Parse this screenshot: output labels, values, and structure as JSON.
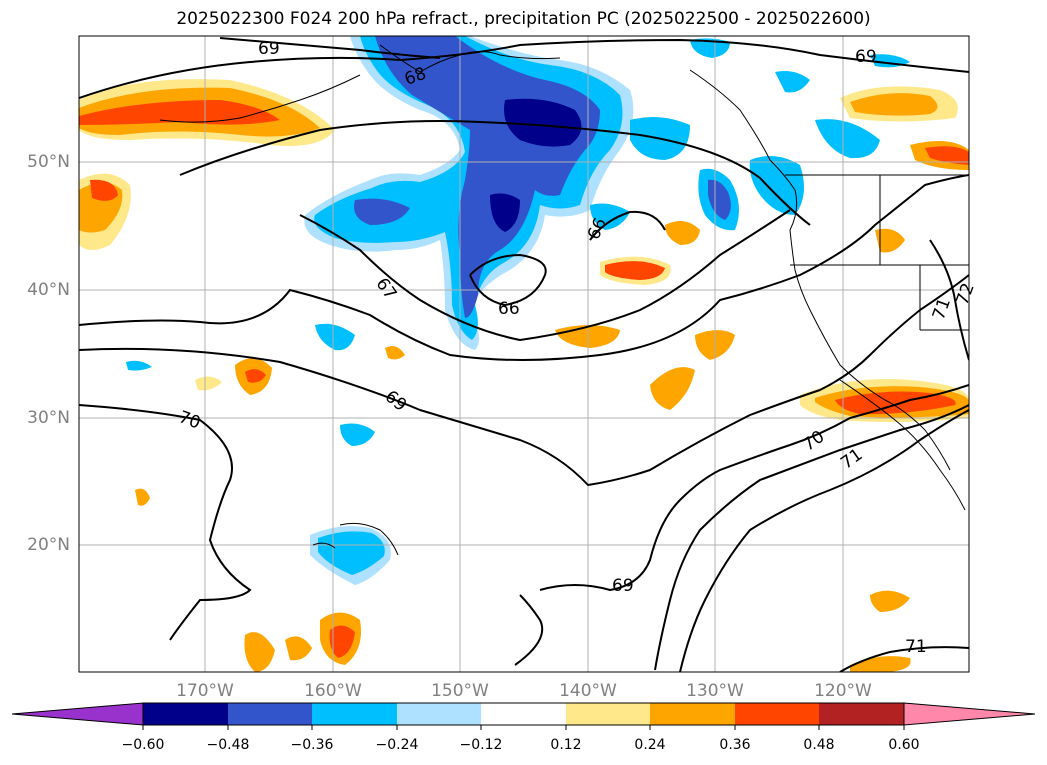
{
  "title": "2025022300 F024 200 hPa refract., precipitation PC (2025022500 - 2025022600)",
  "lat_labels": [
    "50°N",
    "40°N",
    "30°N",
    "20°N"
  ],
  "lon_labels": [
    "170°W",
    "160°W",
    "150°W",
    "140°W",
    "130°W",
    "120°W"
  ],
  "contour_labels": [
    "69",
    "68",
    "69",
    "66",
    "67",
    "66",
    "69",
    "70",
    "70",
    "71",
    "71",
    "72",
    "69",
    "71"
  ],
  "colorbar": {
    "colors": [
      "#9932cc",
      "#00008b",
      "#3355cc",
      "#00bfff",
      "#aee0ff",
      "#ffffff",
      "#ffe88a",
      "#ffa500",
      "#ff4500",
      "#b22222",
      "#ff88aa"
    ],
    "tick_labels": [
      "−0.60",
      "−0.48",
      "−0.36",
      "−0.24",
      "−0.12",
      "0.12",
      "0.24",
      "0.36",
      "0.48",
      "0.60"
    ]
  }
}
